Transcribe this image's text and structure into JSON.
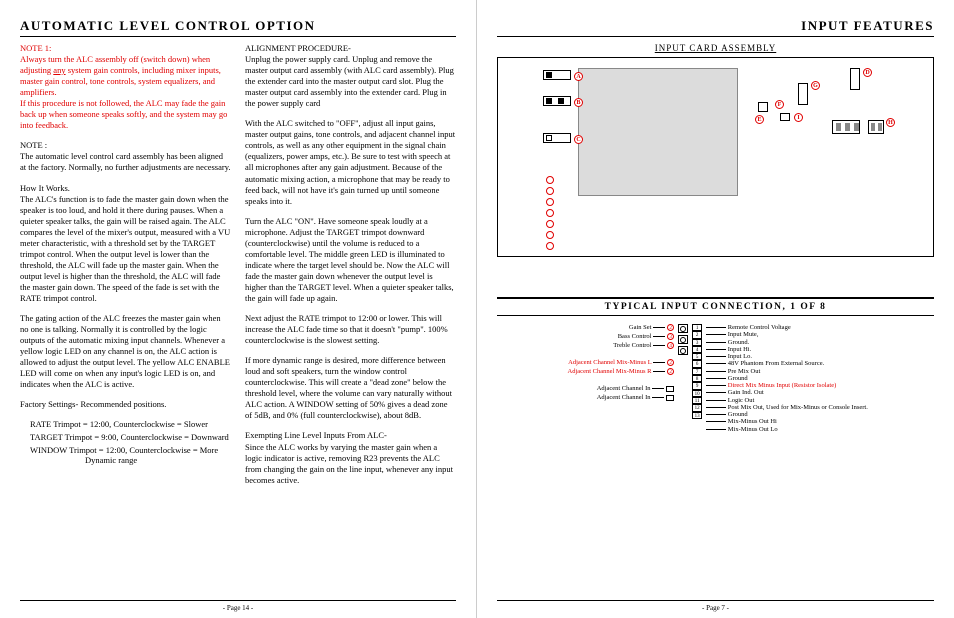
{
  "left": {
    "title": "AUTOMATIC  LEVEL  CONTROL  OPTION",
    "note1_head": "NOTE 1:",
    "note1_body": "Always turn the ALC assembly off (switch down) when adjusting <u>any</u> system gain controls, including mixer inputs, master gain control, tone controls, system equalizers, and amplifiers.<br>If this procedure is not followed, the ALC may fade the gain back up when someone speaks softly, and the system may go into feedback.",
    "note2_head": "NOTE :",
    "note2_body": "The automatic level control card assembly has been aligned at the factory. Normally, no further adjustments are necessary.",
    "how_head": "How It Works.",
    "how_body": "The ALC's function is to fade the master gain down when the speaker is too loud, and hold it there during pauses. When a quieter speaker talks, the gain will be raised again. The ALC compares the level of the mixer's output, measured with a VU meter characteristic, with a threshold set by the TARGET  trimpot control. When the output level is lower than the threshold, the ALC will fade up the master gain. When the output level is higher than the threshold, the ALC will fade the master gain down. The speed of the fade is set with the RATE trimpot control.",
    "gating": "The gating action of the ALC freezes the master gain when no one is talking. Normally it is controlled by the logic outputs of the automatic mixing input channels. Whenever a yellow logic LED on any channel is on, the ALC action is allowed to adjust the output level. The yellow ALC ENABLE LED will come on when any input's logic LED is on, and indicates when the ALC is active.",
    "factset_head": "Factory Settings- Recommended positions.",
    "settings": [
      "RATE Trimpot = 12:00, Counterclockwise = Slower",
      "TARGET Trimpot = 9:00, Counterclockwise = Downward",
      "WINDOW Trimpot = 12:00, Counterclockwise = More Dynamic range"
    ],
    "align_head": "ALIGNMENT PROCEDURE-",
    "align_p1": "Unplug the power supply card. Unplug and remove the master output card assembly (with ALC card assembly). Plug the extender card into the master output card slot. Plug the master output card assembly into the extender card. Plug in the power supply card",
    "align_p2": "With the ALC switched to \"OFF\", adjust all input gains, master output gains, tone controls, and adjacent channel input controls, as well as any other equipment in the signal chain (equalizers, power amps, etc.). Be sure to test with speech at all microphones after any gain adjustment. Because of the automatic mixing action, a microphone that may be ready to feed back, will not have it's gain turned up until someone speaks into it.",
    "align_p3": "Turn the ALC \"ON\". Have someone speak loudly at a microphone. Adjust the TARGET trimpot downward (counterclockwise) until the volume is reduced to a comfortable level. The middle green LED is illuminated to indicate where the target level should be.  Now the ALC will fade the master gain down whenever the output level is higher than the TARGET level. When a quieter speaker talks, the gain will fade up again.",
    "align_p4": "Next adjust the RATE trimpot to 12:00 or lower. This will increase the ALC fade time so that it doesn't  \"pump\". 100% counterclockwise is the slowest setting.",
    "align_p5": "If more dynamic range is desired, more difference between loud and soft speakers, turn the window control counterclockwise. This will create a \"dead zone\" below the threshold level, where the volume can vary naturally without ALC action. A WINDOW setting of 50% gives a dead zone of 5dB, and 0% (full counterclockwise), about 8dB.",
    "exempt_head": "Exempting Line Level Inputs From ALC-",
    "exempt_body": "Since the ALC works by varying the master gain when a logic indicator is active, removing R23 prevents the ALC from changing the gain on the line input, whenever any input becomes active.",
    "pagenum": "- Page  14 -"
  },
  "right": {
    "title": "INPUT FEATURES",
    "subhead": "INPUT  CARD  ASSEMBLY",
    "letters": [
      "A",
      "B",
      "C",
      "D",
      "E",
      "F",
      "G",
      "H",
      "I"
    ],
    "typical_title": "TYPICAL  INPUT  CONNECTION,  1  OF  8",
    "left_labels": [
      "Gain  Set",
      "Bass  Control",
      "Treble  Control",
      "",
      "Adjacent Channel  Mix-Minus L",
      "Adjacent Channel Mix-Minus R",
      "",
      "Adjacent  Channel  In",
      "Adjacent  Channel  In"
    ],
    "left_red": [
      false,
      false,
      false,
      false,
      true,
      true,
      false,
      false,
      false
    ],
    "left_circles": [
      "2",
      "3",
      "4",
      "",
      "2",
      "2",
      "",
      "",
      ""
    ],
    "numbers": [
      "1",
      "2",
      "3",
      "4",
      "5",
      "6",
      "7",
      "8",
      "9",
      "10",
      "11",
      "12",
      "13"
    ],
    "right_labels": [
      "Remote  Control Voltage",
      "Input Mute,",
      "Ground.",
      "Input Hi.",
      "Input Lo.",
      "48V Phantom From External Source.",
      "Pre Mix Out",
      "Ground",
      "Direct Mix Minus Input (Resistor Isolate)",
      "Gain Ind. Out",
      "Logic Out",
      "Post Mix Out, Used for Mix-Minus or Console Insert.",
      "Ground",
      "Mix-Minus Out Hi",
      "Mix-Minus Out Lo"
    ],
    "right_red": [
      false,
      false,
      false,
      false,
      false,
      false,
      false,
      false,
      true,
      false,
      false,
      false,
      false,
      false,
      false
    ],
    "pagenum": "- Page  7 -"
  }
}
